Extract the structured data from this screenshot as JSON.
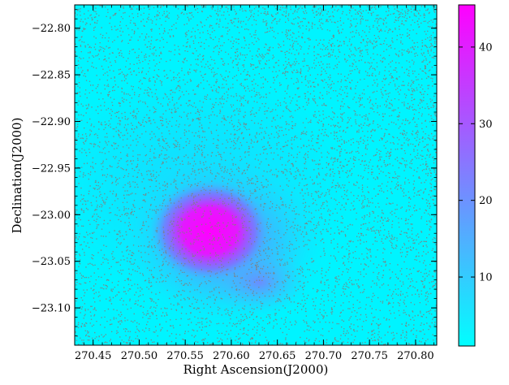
{
  "chart_data": {
    "type": "heatmap",
    "title": "",
    "xlabel": "Right Ascension(J2000)",
    "ylabel": "Declination(J2000)",
    "x_ticks": [
      270.45,
      270.5,
      270.55,
      270.6,
      270.65,
      270.7,
      270.75,
      270.8
    ],
    "x_tick_labels": [
      "270.45",
      "270.50",
      "270.55",
      "270.60",
      "270.65",
      "270.70",
      "270.75",
      "270.80"
    ],
    "y_ticks": [
      -22.8,
      -22.85,
      -22.9,
      -22.95,
      -23.0,
      -23.05,
      -23.1
    ],
    "y_tick_labels": [
      "−22.80",
      "−22.85",
      "−22.90",
      "−22.95",
      "−23.00",
      "−23.05",
      "−23.10"
    ],
    "xlim": [
      270.43,
      270.823
    ],
    "ylim": [
      -23.14,
      -22.775
    ],
    "colorbar": {
      "ticks": [
        10,
        20,
        30,
        40
      ],
      "tick_labels": [
        "10",
        "20",
        "30",
        "40"
      ],
      "range": [
        1,
        45.5
      ],
      "colors": [
        "#00ffff",
        "#ff00ff"
      ]
    },
    "density_peak": {
      "x": 270.578,
      "y": -23.018,
      "value": 45
    },
    "scatter_color": "#808080",
    "grid": false
  }
}
